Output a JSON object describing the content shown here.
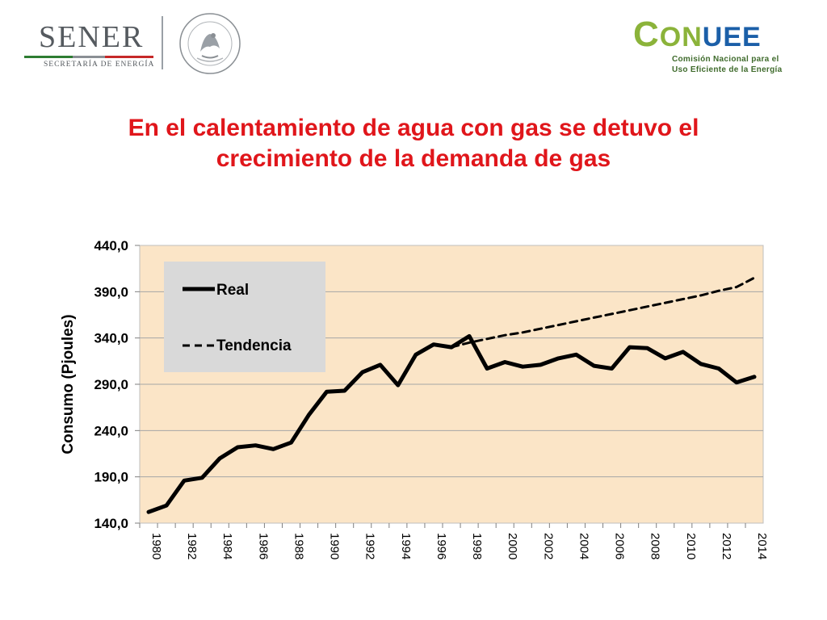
{
  "header": {
    "sener": {
      "wordmark": "SENER",
      "subtitle": "SECRETARÍA DE ENERGÍA"
    },
    "seal": {
      "icon": "mexican-coat-of-arms-icon",
      "text": "ESTADOS UNIDOS MEXICANOS"
    },
    "conuee": {
      "wordmark_c": "C",
      "wordmark_on": "ON",
      "wordmark_uee": "UEE",
      "line1": "Comisión Nacional para el",
      "line2": "Uso Eficiente de la Energía",
      "colors": {
        "green": "#8bb33a",
        "blue": "#1b5fa8",
        "dark_green": "#3f6b2c"
      }
    }
  },
  "slide": {
    "title_lines": [
      "En el calentamiento de agua con gas se detuvo el",
      "crecimiento de la demanda de gas"
    ],
    "title_color": "#e0161b"
  },
  "chart_data": {
    "type": "line",
    "title": "",
    "xlabel": "",
    "ylabel": "Consumo (Pjoules)",
    "ylim": [
      140,
      440
    ],
    "yticks": [
      "440,0",
      "390,0",
      "340,0",
      "290,0",
      "240,0",
      "190,0",
      "140,0"
    ],
    "ytick_values": [
      440,
      390,
      340,
      290,
      240,
      190,
      140
    ],
    "xtick_labels": [
      "1980",
      "1982",
      "1984",
      "1986",
      "1988",
      "1990",
      "1992",
      "1994",
      "1996",
      "1998",
      "2000",
      "2002",
      "2004",
      "2006",
      "2008",
      "2010",
      "2012",
      "2014"
    ],
    "x": [
      1980,
      1981,
      1982,
      1983,
      1984,
      1985,
      1986,
      1987,
      1988,
      1989,
      1990,
      1991,
      1992,
      1993,
      1994,
      1995,
      1996,
      1997,
      1998,
      1999,
      2000,
      2001,
      2002,
      2003,
      2004,
      2005,
      2006,
      2007,
      2008,
      2009,
      2010,
      2011,
      2012,
      2013,
      2014
    ],
    "grid": true,
    "legend_position": "top-left",
    "plot_background": "#fbe5c7",
    "series": [
      {
        "name": "Real",
        "style": "solid",
        "color": "#000000",
        "values": [
          152,
          159,
          186,
          189,
          210,
          222,
          224,
          220,
          227,
          257,
          282,
          283,
          303,
          311,
          289,
          322,
          333,
          330,
          342,
          307,
          314,
          309,
          311,
          318,
          322,
          310,
          307,
          330,
          329,
          318,
          325,
          312,
          307,
          292,
          298
        ]
      },
      {
        "name": "Tendencia",
        "style": "dashed",
        "color": "#000000",
        "x": [
          1997,
          1998,
          1999,
          2000,
          2001,
          2002,
          2003,
          2004,
          2005,
          2006,
          2007,
          2008,
          2009,
          2010,
          2011,
          2012,
          2013,
          2014
        ],
        "values": [
          330,
          335,
          339,
          343,
          346,
          350,
          354,
          358,
          362,
          366,
          370,
          374,
          378,
          382,
          386,
          391,
          395,
          405
        ]
      }
    ]
  }
}
